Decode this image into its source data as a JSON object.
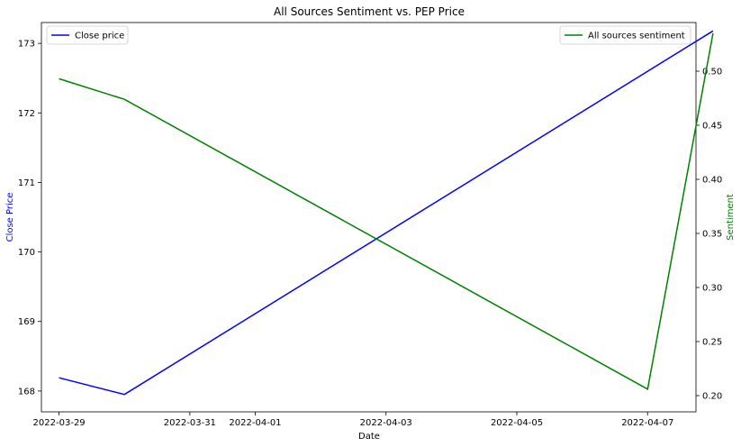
{
  "chart_data": {
    "type": "line",
    "title": "All Sources Sentiment vs. PEP Price",
    "xlabel": "Date",
    "ylabel_left": "Close Price",
    "ylabel_right": "Sentiment",
    "x_ticks": [
      "2022-03-29",
      "2022-03-31",
      "2022-04-01",
      "2022-04-03",
      "2022-04-05",
      "2022-04-07"
    ],
    "x_range": [
      "2022-03-28",
      "2022-04-08"
    ],
    "ylim_left": [
      167.7,
      173.3
    ],
    "ylim_right": [
      0.185,
      0.545
    ],
    "yticks_left": [
      168,
      169,
      170,
      171,
      172,
      173
    ],
    "yticks_right": [
      "0.20",
      "0.25",
      "0.30",
      "0.35",
      "0.40",
      "0.45",
      "0.50"
    ],
    "grid": false,
    "series": [
      {
        "name": "Close price",
        "axis": "left",
        "color": "#0000ff",
        "legend_position": "top-left",
        "points": [
          {
            "x": "2022-03-29",
            "y": 168.19
          },
          {
            "x": "2022-03-30",
            "y": 167.95
          },
          {
            "x": "2022-04-08",
            "y": 173.18
          }
        ]
      },
      {
        "name": "All sources sentiment",
        "axis": "right",
        "color": "#008000",
        "legend_position": "top-right",
        "points": [
          {
            "x": "2022-03-29",
            "y": 0.493
          },
          {
            "x": "2022-03-30",
            "y": 0.474
          },
          {
            "x": "2022-04-07",
            "y": 0.206
          },
          {
            "x": "2022-04-08",
            "y": 0.535
          }
        ]
      }
    ]
  }
}
